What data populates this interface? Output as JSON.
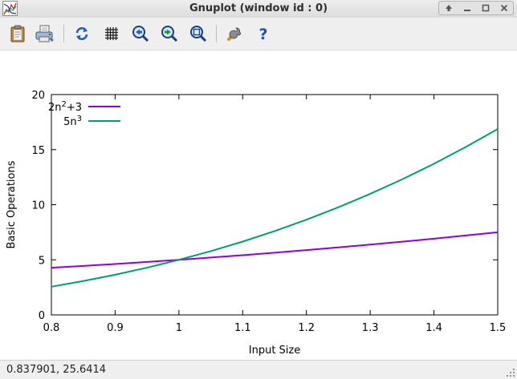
{
  "window": {
    "title": "Gnuplot (window id : 0)",
    "buttons": [
      "up-arrow-icon",
      "minimize-icon",
      "maximize-icon",
      "close-icon"
    ]
  },
  "toolbar": {
    "buttons": [
      {
        "icon": "clipboard-icon"
      },
      {
        "icon": "print-icon"
      },
      {
        "icon": "replot-icon"
      },
      {
        "icon": "grid-icon"
      },
      {
        "icon": "zoom-previous-icon"
      },
      {
        "icon": "zoom-next-icon"
      },
      {
        "icon": "unzoom-icon"
      },
      {
        "icon": "options-wrench-icon"
      },
      {
        "icon": "help-icon"
      }
    ]
  },
  "chart_data": {
    "type": "line",
    "xlabel": "Input Size",
    "ylabel": "Basic Operations",
    "xlim": [
      0.8,
      1.5
    ],
    "ylim": [
      0,
      20
    ],
    "xticks": [
      "0.8",
      "0.9",
      "1",
      "1.1",
      "1.2",
      "1.3",
      "1.4",
      "1.5"
    ],
    "yticks": [
      "0",
      "5",
      "10",
      "15",
      "20"
    ],
    "grid": false,
    "legend_position": "top-left",
    "series": [
      {
        "name_base": "2n",
        "name_sup": "2",
        "name_tail": "+3",
        "color": "#9400d3",
        "x": [
          0.8,
          0.85,
          0.9,
          0.95,
          1.0,
          1.05,
          1.1,
          1.15,
          1.2,
          1.25,
          1.3,
          1.35,
          1.4,
          1.45,
          1.5
        ],
        "y": [
          4.28,
          4.445,
          4.62,
          4.805,
          5.0,
          5.205,
          5.42,
          5.645,
          5.88,
          6.125,
          6.38,
          6.645,
          6.92,
          7.205,
          7.5
        ]
      },
      {
        "name_base": "5n",
        "name_sup": "3",
        "name_tail": "",
        "color": "#009e73",
        "x": [
          0.8,
          0.85,
          0.9,
          0.95,
          1.0,
          1.05,
          1.1,
          1.15,
          1.2,
          1.25,
          1.3,
          1.35,
          1.4,
          1.45,
          1.5
        ],
        "y": [
          2.56,
          3.071,
          3.645,
          4.287,
          5.0,
          5.788,
          6.655,
          7.604,
          8.64,
          9.766,
          10.985,
          12.302,
          13.72,
          15.243,
          16.875
        ]
      }
    ]
  },
  "status": {
    "coords": "0.837901,  25.6414"
  }
}
